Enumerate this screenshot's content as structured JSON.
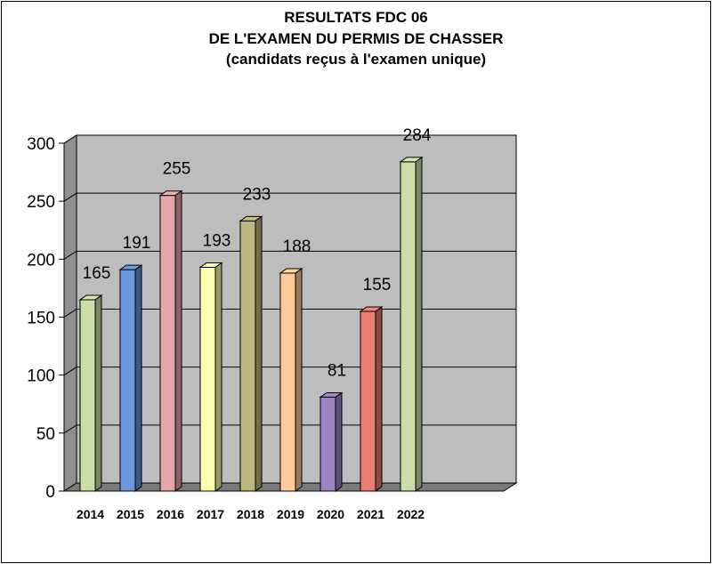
{
  "title_lines": [
    "RESULTATS FDC 06",
    "DE L'EXAMEN DU PERMIS DE CHASSER",
    "(candidats reçus à l'examen unique)"
  ],
  "chart_data": {
    "type": "bar",
    "title": "RESULTATS FDC 06 DE L'EXAMEN DU PERMIS DE CHASSER (candidats reçus à l'examen unique)",
    "categories": [
      "2014",
      "2015",
      "2016",
      "2017",
      "2018",
      "2019",
      "2020",
      "2021",
      "2022"
    ],
    "values": [
      165,
      191,
      255,
      193,
      233,
      188,
      81,
      155,
      284
    ],
    "ylim": [
      0,
      300
    ],
    "yticks": [
      "0",
      "50",
      "100",
      "150",
      "200",
      "250",
      "300"
    ],
    "grid": true,
    "three_d": true,
    "legend": "none",
    "colors": [
      "#CCDDA8",
      "#6A98DA",
      "#E5A8A8",
      "#FFFFB0",
      "#BDB67E",
      "#FFCB98",
      "#9A84C2",
      "#EC7C74",
      "#CCDDA8"
    ],
    "plot_background": "#BDBDBD"
  }
}
